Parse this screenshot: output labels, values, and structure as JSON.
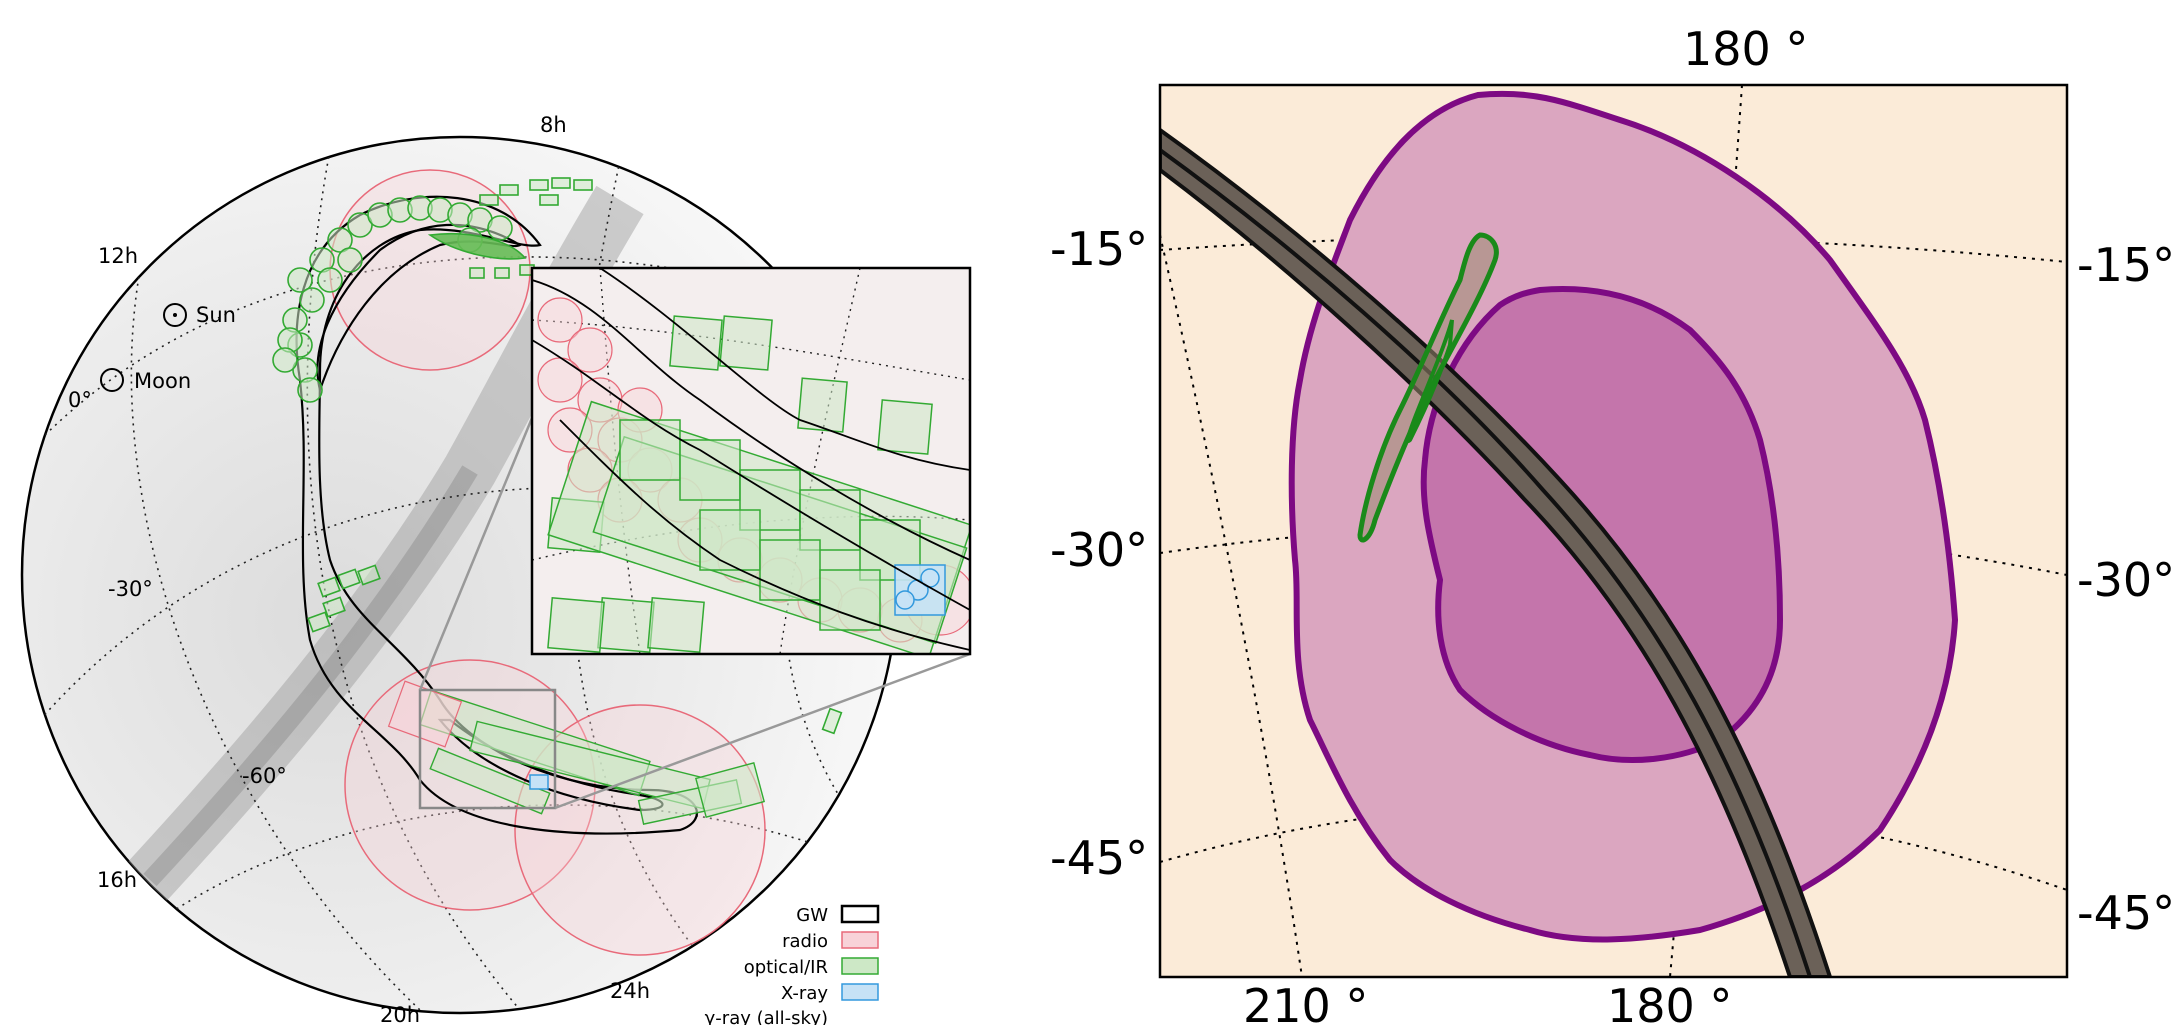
{
  "left_panel": {
    "ra_labels": [
      "8h",
      "12h",
      "0°",
      "16h",
      "20h",
      "24h"
    ],
    "dec_labels": [
      "-30°",
      "-60°"
    ],
    "markers": {
      "sun": "Sun",
      "moon": "Moon"
    },
    "legend": [
      {
        "label": "GW",
        "color": "#000000",
        "fill": "none"
      },
      {
        "label": "radio",
        "color": "#e86a7a",
        "fill": "#f8d2d8"
      },
      {
        "label": "optical/IR",
        "color": "#33aa33",
        "fill": "#cde8c6"
      },
      {
        "label": "X-ray",
        "color": "#3399dd",
        "fill": "#c6e2f6"
      },
      {
        "label": "γ-ray (all-sky)",
        "color": "#555555",
        "fill": "none"
      }
    ]
  },
  "right_panel": {
    "top_labels": [
      "180 °"
    ],
    "bottom_labels": [
      "210 °",
      "180 °"
    ],
    "left_labels": [
      "-15°",
      "-30°",
      "-45°"
    ],
    "right_labels": [
      "-15°",
      "-30°",
      "-45°"
    ],
    "colors": {
      "background": "#fbebd8",
      "outer_region": "#dba6c0",
      "inner_region": "#c475ab",
      "region_edge": "#7d0a83",
      "green_contour": "#1a8a1a",
      "band_fill": "#6b6158",
      "band_edge": "#111111"
    }
  }
}
